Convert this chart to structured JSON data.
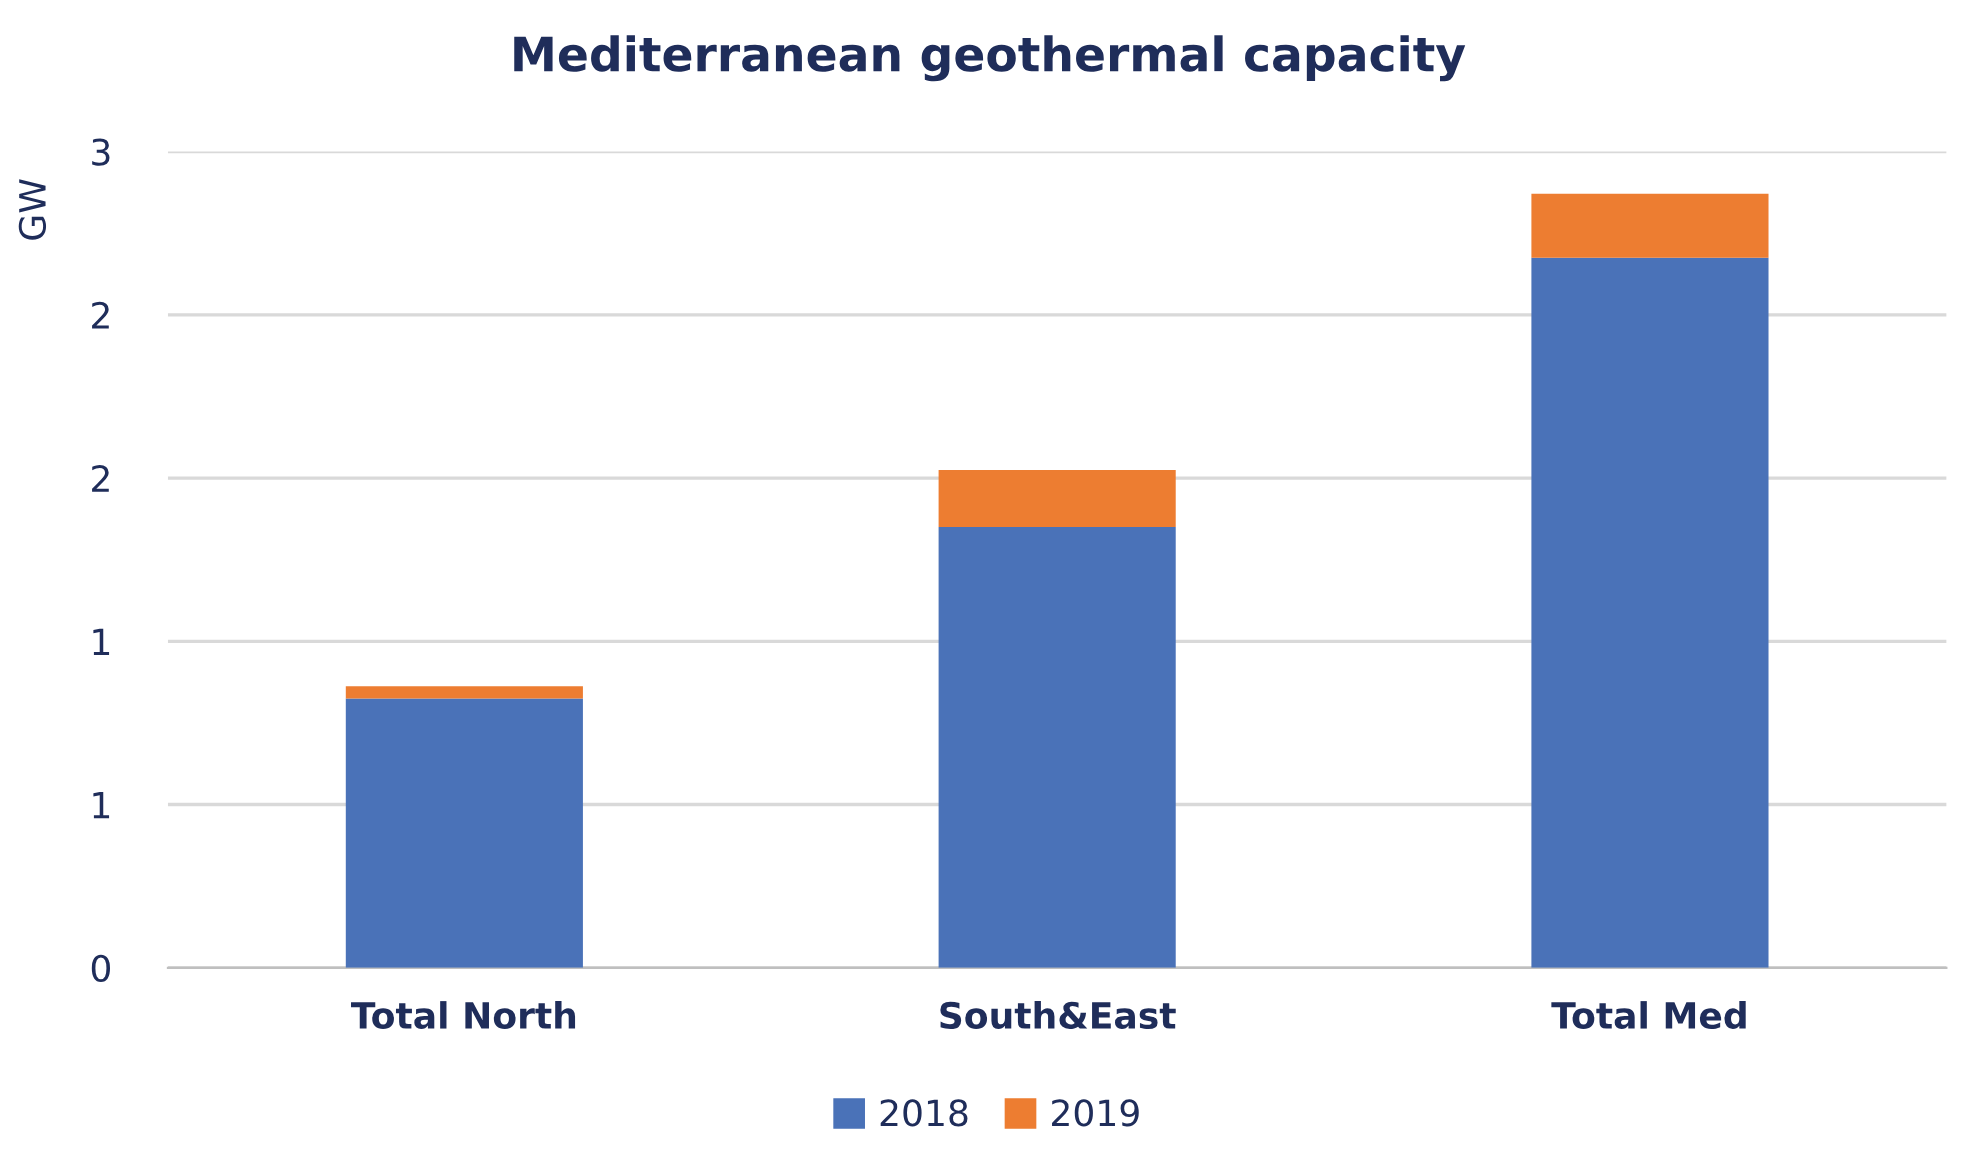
{
  "chart_data": {
    "type": "bar",
    "title": "Mediterranean geothermal capacity",
    "ylabel": "GW",
    "categories": [
      "Total North",
      "South&East",
      "Total Med"
    ],
    "series": [
      {
        "name": "2018",
        "color": "#4a72b8",
        "values": [
          0.99,
          1.62,
          2.61
        ]
      },
      {
        "name": "2019",
        "color": "#ed7d31",
        "values": [
          0.045,
          0.21,
          0.235
        ]
      }
    ],
    "stacked": true,
    "ylim": [
      0,
      3
    ],
    "yticks": [
      0,
      {
        "value": 0.6,
        "label": "1"
      },
      {
        "value": 1.2,
        "label": "1"
      },
      {
        "value": 1.8,
        "label": "2"
      },
      {
        "value": 2.4,
        "label": "2"
      },
      3
    ],
    "grid": "y",
    "legend": "bottom"
  }
}
